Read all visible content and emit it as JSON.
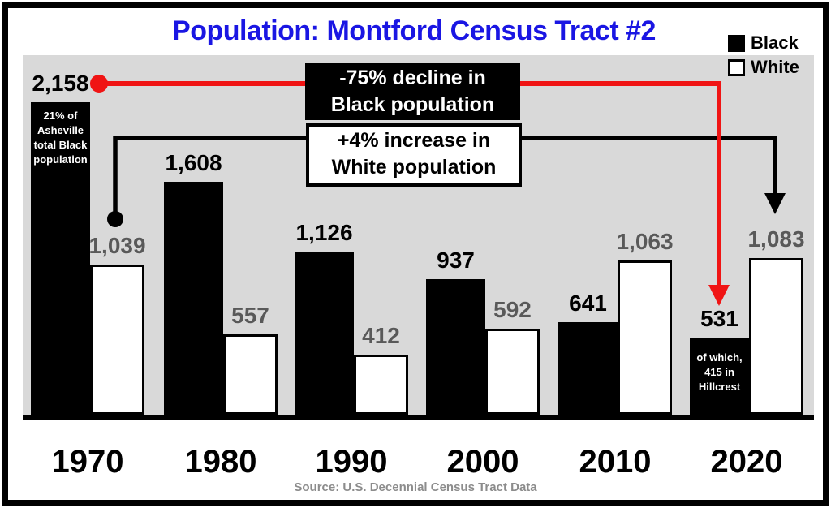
{
  "title": "Population: Montford Census Tract #2",
  "legend": [
    {
      "label": "Black",
      "fill": "#000000"
    },
    {
      "label": "White",
      "fill": "#ffffff"
    }
  ],
  "annotations": {
    "black_decline": {
      "line1": "-75% decline in",
      "line2": "Black population"
    },
    "white_increase": {
      "line1": "+4% increase in",
      "line2": "White population"
    }
  },
  "source": "Source: U.S. Decennial Census Tract Data",
  "colors": {
    "title_blue": "#1a16e3",
    "plot_background": "#d9d9d9",
    "bar_black": "#000000",
    "bar_white": "#ffffff",
    "white_value_label_gray": "#595959",
    "arrow_red": "#f01414",
    "arrow_black": "#000000",
    "source_gray": "#8c8c8c"
  },
  "chart_data": {
    "type": "bar",
    "title": "Population: Montford Census Tract #2",
    "categories": [
      "1970",
      "1980",
      "1990",
      "2000",
      "2010",
      "2020"
    ],
    "series": [
      {
        "name": "Black",
        "values": [
          2158,
          1608,
          1126,
          937,
          641,
          531
        ],
        "fill": "#000000",
        "label_color": "#000000"
      },
      {
        "name": "White",
        "values": [
          1039,
          557,
          412,
          592,
          1063,
          1083
        ],
        "fill": "#ffffff",
        "label_color": "#595959"
      }
    ],
    "bar_notes": [
      {
        "category": "1970",
        "series": "Black",
        "lines": [
          "21% of",
          "Asheville",
          "total Black",
          "population"
        ]
      },
      {
        "category": "2020",
        "series": "Black",
        "lines": [
          "of which,",
          "415 in",
          "Hillcrest"
        ]
      }
    ],
    "xlabel": "",
    "ylabel": "",
    "ylim": [
      0,
      2250
    ],
    "grid": false,
    "legend_position": "top-right",
    "annotations": [
      {
        "text": "-75% decline in Black population",
        "from_value": 2158,
        "from_category": "1970",
        "to_category": "2020",
        "arrow_color": "#f01414"
      },
      {
        "text": "+4% increase in White population",
        "from_value": 1039,
        "from_category": "1970",
        "to_category": "2020",
        "arrow_color": "#000000"
      }
    ]
  }
}
